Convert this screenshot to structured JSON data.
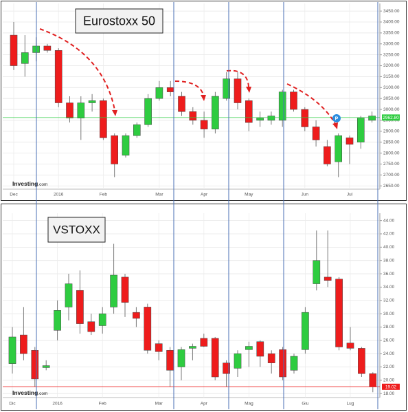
{
  "chart_data": [
    {
      "type": "candlestick",
      "title": "Eurostoxx 50",
      "source": "Investing",
      "source_suffix": ".com",
      "categories": [
        "Dec",
        null,
        null,
        null,
        "2016",
        null,
        null,
        null,
        "Feb",
        null,
        null,
        null,
        null,
        "Mar",
        null,
        null,
        null,
        "Apr",
        null,
        null,
        null,
        "May",
        null,
        null,
        null,
        null,
        "Jun",
        null,
        null,
        null,
        "Jul",
        null,
        null
      ],
      "open": [
        3340,
        3210,
        3260,
        3290,
        3270,
        3030,
        2960,
        3030,
        3040,
        2880,
        2790,
        2880,
        2930,
        3050,
        3100,
        3060,
        2990,
        2950,
        2910,
        3050,
        3140,
        3040,
        2950,
        2950,
        2950,
        3080,
        3000,
        2920,
        2830,
        2760,
        2870,
        2850,
        2950
      ],
      "high": [
        3400,
        3340,
        3330,
        3300,
        3280,
        3060,
        3060,
        3070,
        3050,
        2890,
        2890,
        2940,
        3070,
        3130,
        3130,
        3080,
        3010,
        2990,
        3080,
        3170,
        3170,
        3050,
        2990,
        2990,
        3090,
        3090,
        3010,
        2950,
        2860,
        2890,
        2880,
        2970,
        2990
      ],
      "low": [
        3180,
        3150,
        3220,
        3260,
        3010,
        2940,
        2860,
        2990,
        2860,
        2690,
        2780,
        2870,
        2920,
        3040,
        3060,
        2970,
        2930,
        2870,
        2890,
        3040,
        3000,
        2900,
        2920,
        2930,
        2920,
        2990,
        2900,
        2830,
        2740,
        2690,
        2750,
        2820,
        2940
      ],
      "close": [
        3200,
        3260,
        3290,
        3270,
        3030,
        2960,
        3030,
        3040,
        2870,
        2750,
        2880,
        2930,
        3050,
        3100,
        3080,
        2990,
        2950,
        2910,
        3060,
        3140,
        3030,
        2940,
        2960,
        2970,
        3080,
        3000,
        2920,
        2860,
        2750,
        2880,
        2840,
        2960,
        2970
      ],
      "up_color": "#2ecc40",
      "down_color": "#ee1c1c",
      "ylim": [
        2635,
        3485
      ],
      "yticks": [
        {
          "value": 2650,
          "label": "2650.00"
        },
        {
          "value": 2700,
          "label": "2700.00"
        },
        {
          "value": 2750,
          "label": "2750.00"
        },
        {
          "value": 2800,
          "label": "2800.00"
        },
        {
          "value": 2850,
          "label": "2850.00"
        },
        {
          "value": 2900,
          "label": "2900.00"
        },
        {
          "value": 2950,
          "label": "2950.00"
        },
        {
          "value": 3000,
          "label": "3000.00"
        },
        {
          "value": 3050,
          "label": "3050.00"
        },
        {
          "value": 3100,
          "label": "3100.00"
        },
        {
          "value": 3150,
          "label": "3150.00"
        },
        {
          "value": 3200,
          "label": "3200.00"
        },
        {
          "value": 3250,
          "label": "3250.00"
        },
        {
          "value": 3300,
          "label": "3300.00"
        },
        {
          "value": 3350,
          "label": "3350.00"
        },
        {
          "value": 3400,
          "label": "3400.00"
        },
        {
          "value": 3450,
          "label": "3450.00"
        }
      ],
      "last_price": {
        "value": 2962.8,
        "label": "2962.80"
      },
      "last_color": "#2ecc40",
      "grid": true
    },
    {
      "type": "candlestick",
      "title": "VSTOXX",
      "source": "Investing",
      "source_suffix": ".com",
      "categories": [
        "Dic",
        null,
        null,
        null,
        "2016",
        null,
        null,
        null,
        "Feb",
        null,
        null,
        null,
        null,
        "Mar",
        null,
        null,
        null,
        "Apr",
        null,
        null,
        null,
        "Mag",
        null,
        null,
        null,
        null,
        "Giu",
        null,
        null,
        null,
        "Lug",
        null,
        null
      ],
      "open": [
        22.5,
        26.8,
        24.5,
        21.9,
        27.5,
        31,
        33.5,
        28.8,
        28.2,
        31,
        35.5,
        30.2,
        31,
        25.5,
        24.5,
        22,
        24.8,
        26.3,
        26.3,
        22.6,
        21.8,
        24.6,
        25.8,
        24,
        24.6,
        21.5,
        24.6,
        34.5,
        35.5,
        35.2,
        25.6,
        24.8,
        21
      ],
      "high": [
        28,
        31,
        25,
        23,
        32,
        36,
        36.5,
        30,
        31,
        40.5,
        36,
        31,
        31.5,
        26,
        25,
        25,
        25.5,
        27,
        26.5,
        23,
        24.5,
        25.8,
        26,
        24.5,
        25,
        24,
        31,
        42.5,
        42.5,
        35.5,
        28,
        25,
        21.2
      ],
      "low": [
        21,
        23,
        19,
        21.5,
        26,
        29,
        27,
        26.8,
        27,
        30,
        29.5,
        28,
        24,
        23,
        19,
        20,
        23,
        25,
        20,
        19,
        20.5,
        22,
        22,
        21,
        20,
        21,
        24,
        33.5,
        34,
        24.5,
        24.5,
        20.5,
        18.2
      ],
      "close": [
        26.5,
        24,
        20.2,
        22.2,
        30.5,
        34.5,
        28.5,
        27.3,
        30,
        35.8,
        31.7,
        29.3,
        24.5,
        24.3,
        21.5,
        24.6,
        25.1,
        25.1,
        20.5,
        21,
        24,
        25.1,
        23.6,
        22.6,
        20.5,
        23.6,
        30.2,
        38,
        35,
        25,
        24.8,
        21,
        19
      ],
      "up_color": "#2ecc40",
      "down_color": "#ee1c1c",
      "ylim": [
        17.4,
        45.1
      ],
      "yticks": [
        {
          "value": 18,
          "label": "18.00"
        },
        {
          "value": 20,
          "label": "20.00"
        },
        {
          "value": 22,
          "label": "22.00"
        },
        {
          "value": 24,
          "label": "24.00"
        },
        {
          "value": 26,
          "label": "26.00"
        },
        {
          "value": 28,
          "label": "28.00"
        },
        {
          "value": 30,
          "label": "30.00"
        },
        {
          "value": 32,
          "label": "32.00"
        },
        {
          "value": 34,
          "label": "34.00"
        },
        {
          "value": 36,
          "label": "36.00"
        },
        {
          "value": 38,
          "label": "38.00"
        },
        {
          "value": 40,
          "label": "40.00"
        },
        {
          "value": 42,
          "label": "42.00"
        },
        {
          "value": 44,
          "label": "44.00"
        }
      ],
      "last_price": {
        "value": 19.02,
        "label": "19.02"
      },
      "last_color": "#ee1c1c",
      "grid": true
    }
  ]
}
